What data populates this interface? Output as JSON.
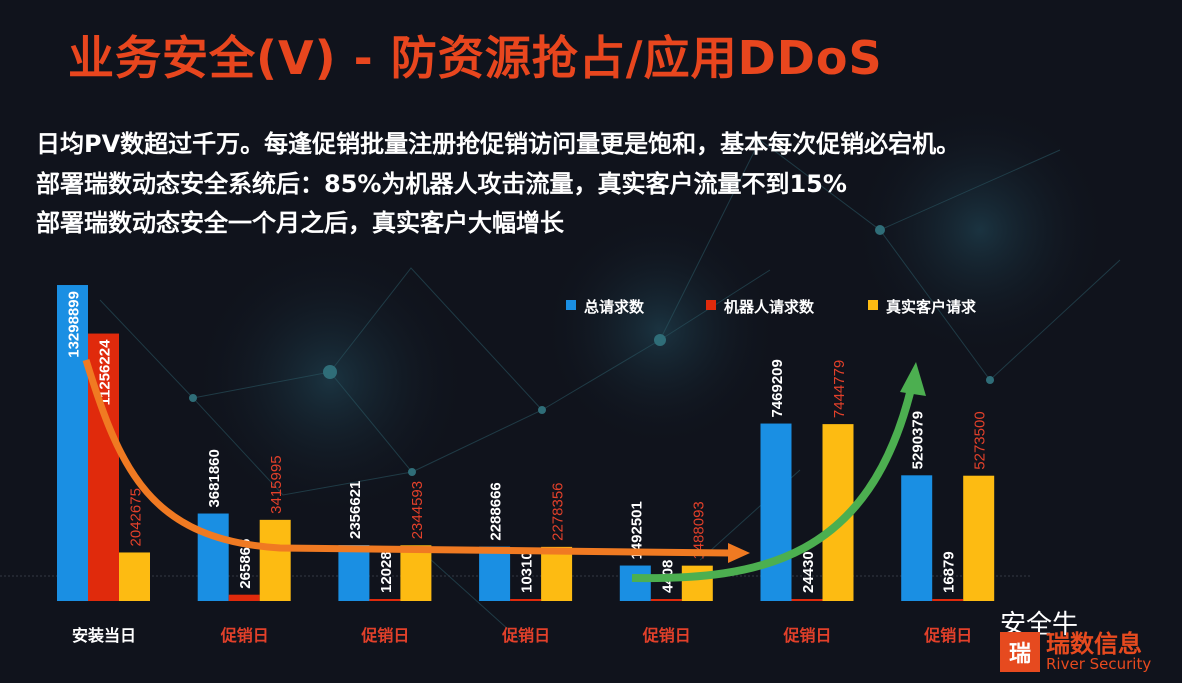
{
  "title": "业务安全(V) - 防资源抢占/应用DDoS",
  "lines": [
    "日均PV数超过千万。每逢促销批量注册抢促销访问量更是饱和，基本每次促销必宕机。",
    "部署瑞数动态安全系统后：85%为机器人攻击流量，真实客户流量不到15%",
    "部署瑞数动态安全一个月之后，真实客户大幅增长"
  ],
  "watermark": "安全牛",
  "logo": {
    "mark": "瑞",
    "cn": "瑞数信息",
    "en": "River Security"
  },
  "colors": {
    "total": "#1a8fe3",
    "bot": "#e02a0c",
    "real": "#fdbb12",
    "title": "#e8461e",
    "decline_arrow": "#f07a22",
    "growth_arrow": "#4caf50"
  },
  "chart_data": {
    "type": "bar",
    "categories": [
      "安装当日",
      "促销日",
      "促销日",
      "促销日",
      "促销日",
      "促销日",
      "促销日"
    ],
    "series": [
      {
        "name": "总请求数",
        "values": [
          13298899,
          3681860,
          2356621,
          2288666,
          1492501,
          7469209,
          5290379
        ]
      },
      {
        "name": "机器人请求数",
        "values": [
          11256224,
          265865,
          12028,
          10310,
          4408,
          24430,
          16879
        ]
      },
      {
        "name": "真实客户请求",
        "values": [
          2042675,
          3415995,
          2344593,
          2278356,
          1488093,
          7444779,
          5273500
        ]
      }
    ],
    "ylim": [
      0,
      13300000
    ],
    "legend": "top-right",
    "grid": false
  }
}
